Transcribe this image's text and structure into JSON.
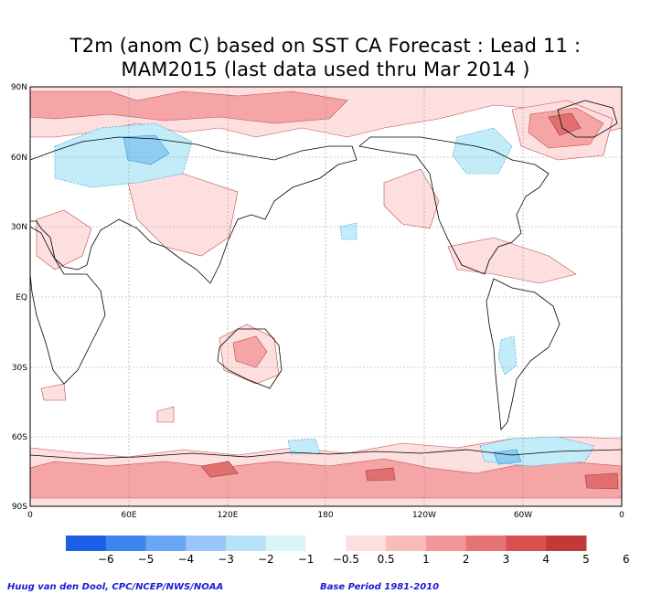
{
  "title": {
    "line1": "T2m (anom C) based on SST CA Forecast : Lead 11 :",
    "line2": "MAM2015 (last data used thru Mar 2014 )"
  },
  "map": {
    "lat_labels": [
      "90N",
      "60N",
      "30N",
      "EQ",
      "30S",
      "60S",
      "90S"
    ],
    "lon_labels": [
      "0",
      "60E",
      "120E",
      "180",
      "120W",
      "60W",
      "0"
    ]
  },
  "colorbar": {
    "tick_labels": [
      "−6",
      "−5",
      "−4",
      "−3",
      "−2",
      "−1",
      "−0.5",
      "0.5",
      "1",
      "2",
      "3",
      "4",
      "5",
      "6"
    ],
    "colors": [
      "#1a5fe6",
      "#3d85f0",
      "#6aa6f5",
      "#98c6f8",
      "#b8e2f8",
      "#d8f6fa",
      "#ffffff",
      "#fddfdf",
      "#f9bcbc",
      "#f19797",
      "#e67474",
      "#d85050",
      "#c03a3a"
    ]
  },
  "footer": {
    "credit": "Huug van den Dool, CPC/NCEP/NWS/NOAA",
    "base_period": "Base Period 1981-2010"
  }
}
